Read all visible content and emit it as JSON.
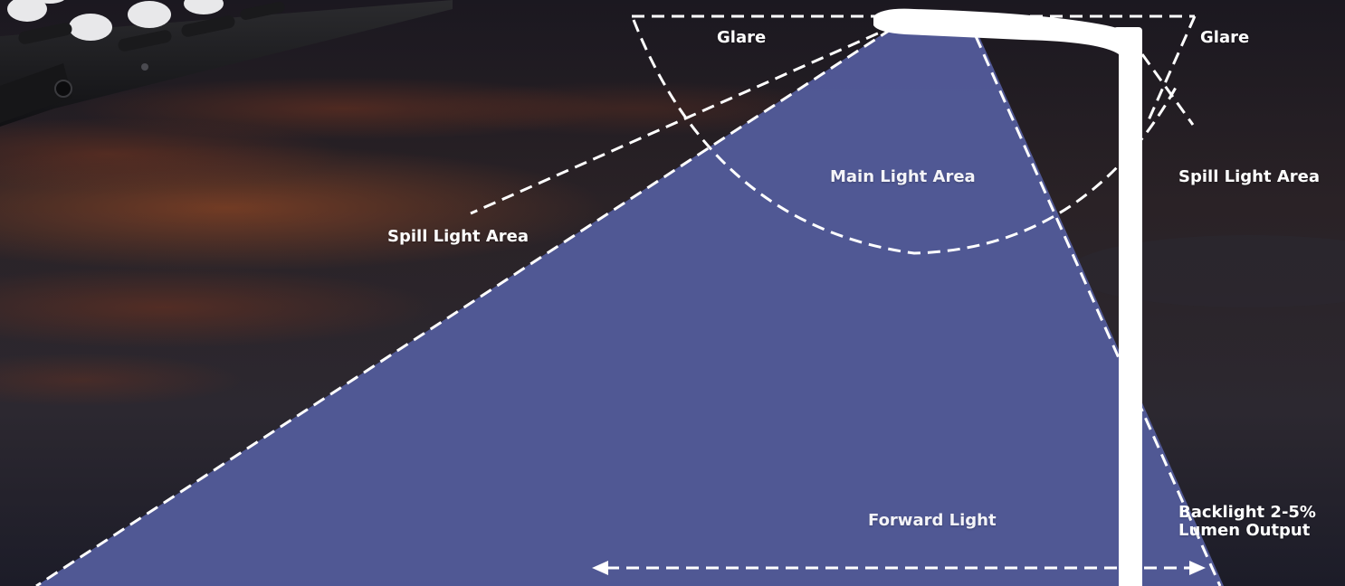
{
  "diagram": {
    "labels": {
      "glare_left": "Glare",
      "glare_right": "Glare",
      "main_light_area": "Main Light Area",
      "spill_light_area_left": "Spill Light Area",
      "spill_light_area_right": "Spill Light Area",
      "forward_light": "Forward Light",
      "backlight_line1": "Backlight 2-5%",
      "backlight_line2": "Lumen Output"
    },
    "colors": {
      "light_beam": "#525a98",
      "sky_dark": "#1f1c2a",
      "sky_glow": "#7a3a22",
      "pole": "#ffffff",
      "dashed_lines": "#ffffff"
    },
    "icons": {
      "street_light": "street-light-pole",
      "led_fixture": "led-module-fixture",
      "arrow": "double-headed-arrow"
    }
  }
}
